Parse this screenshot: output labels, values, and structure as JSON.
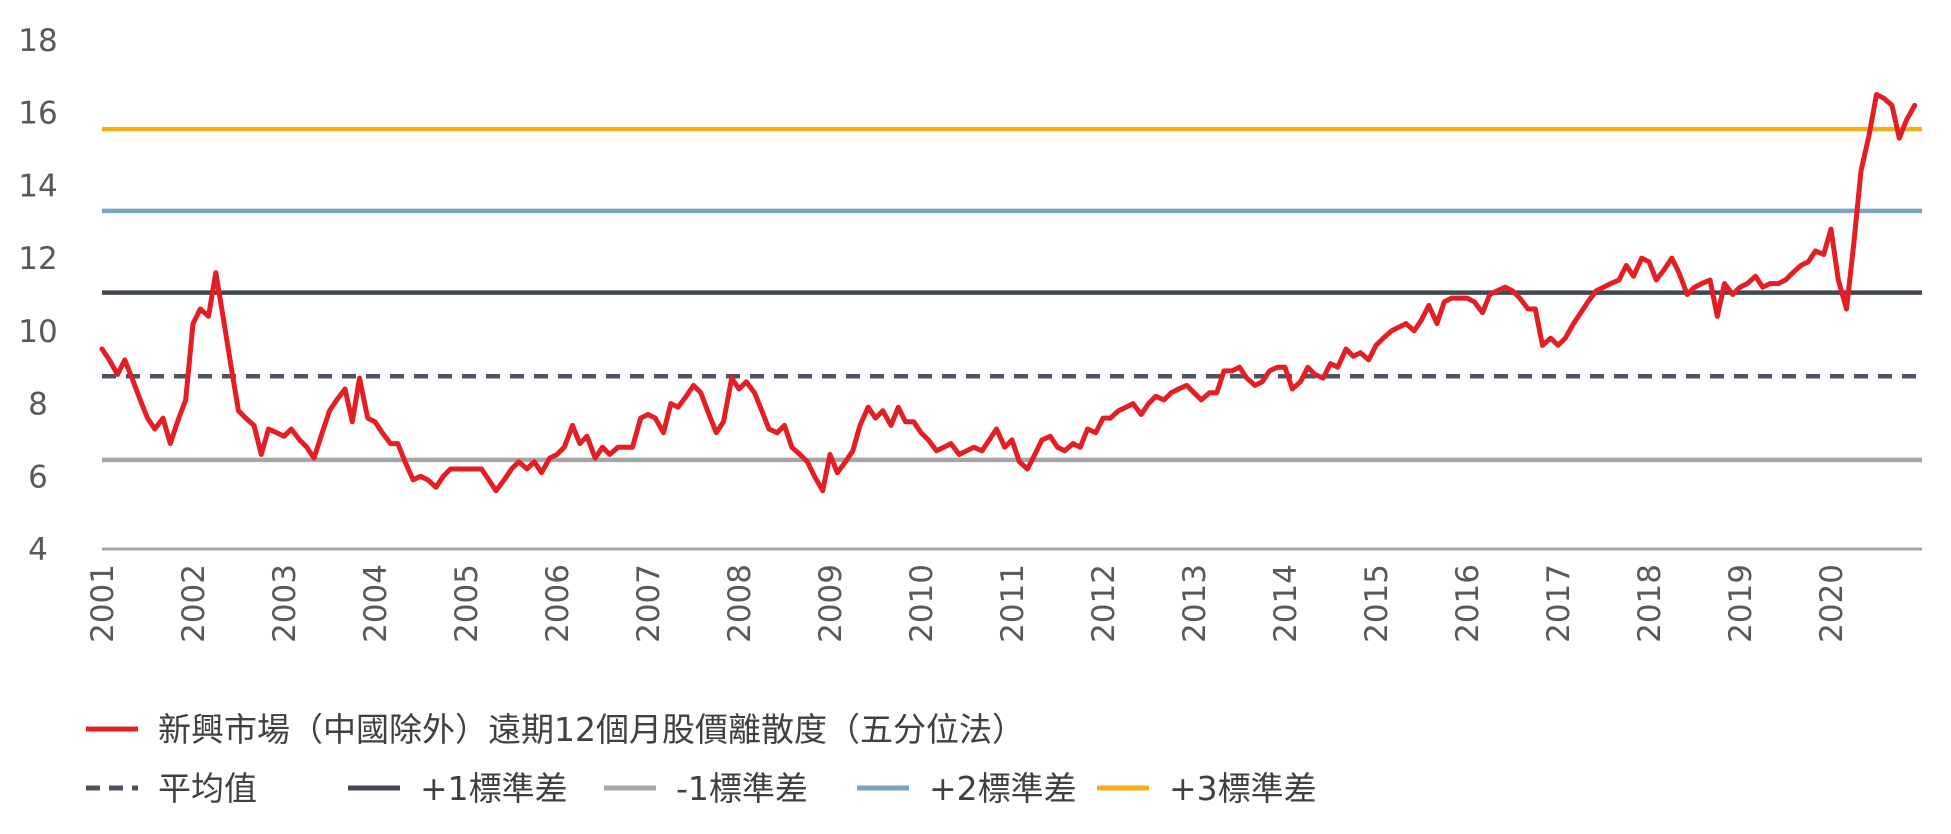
{
  "chart_data": {
    "type": "line",
    "title": "",
    "xlabel": "",
    "ylabel": "",
    "xlim": [
      2001.0,
      2021.0
    ],
    "ylim": [
      4,
      18
    ],
    "yticks": [
      4,
      6,
      8,
      10,
      12,
      14,
      16,
      18
    ],
    "xticks": [
      "2001",
      "2002",
      "2003",
      "2004",
      "2005",
      "2006",
      "2007",
      "2008",
      "2009",
      "2010",
      "2011",
      "2012",
      "2013",
      "2014",
      "2015",
      "2016",
      "2017",
      "2018",
      "2019",
      "2020"
    ],
    "grid": false,
    "legend_position": "bottom",
    "series": [
      {
        "name": "新興市場（中國除外）遠期12個月股價離散度（五分位法）",
        "color": "#e31e24",
        "style": "solid",
        "x": [
          2001.0,
          2001.08,
          2001.17,
          2001.25,
          2001.33,
          2001.42,
          2001.5,
          2001.58,
          2001.67,
          2001.75,
          2001.83,
          2001.92,
          2002.0,
          2002.08,
          2002.17,
          2002.25,
          2002.33,
          2002.42,
          2002.5,
          2002.58,
          2002.67,
          2002.75,
          2002.83,
          2002.92,
          2003.0,
          2003.08,
          2003.17,
          2003.25,
          2003.33,
          2003.42,
          2003.5,
          2003.58,
          2003.67,
          2003.75,
          2003.83,
          2003.92,
          2004.0,
          2004.08,
          2004.17,
          2004.25,
          2004.33,
          2004.42,
          2004.5,
          2004.58,
          2004.67,
          2004.75,
          2004.83,
          2004.92,
          2005.0,
          2005.08,
          2005.17,
          2005.25,
          2005.33,
          2005.42,
          2005.5,
          2005.58,
          2005.67,
          2005.75,
          2005.83,
          2005.92,
          2006.0,
          2006.08,
          2006.17,
          2006.25,
          2006.33,
          2006.42,
          2006.5,
          2006.58,
          2006.67,
          2006.75,
          2006.83,
          2006.92,
          2007.0,
          2007.08,
          2007.17,
          2007.25,
          2007.33,
          2007.42,
          2007.5,
          2007.58,
          2007.67,
          2007.75,
          2007.83,
          2007.92,
          2008.0,
          2008.08,
          2008.17,
          2008.25,
          2008.33,
          2008.42,
          2008.5,
          2008.58,
          2008.67,
          2008.75,
          2008.83,
          2008.92,
          2009.0,
          2009.08,
          2009.17,
          2009.25,
          2009.33,
          2009.42,
          2009.5,
          2009.58,
          2009.67,
          2009.75,
          2009.83,
          2009.92,
          2010.0,
          2010.08,
          2010.17,
          2010.25,
          2010.33,
          2010.42,
          2010.5,
          2010.58,
          2010.67,
          2010.75,
          2010.83,
          2010.92,
          2011.0,
          2011.08,
          2011.17,
          2011.25,
          2011.33,
          2011.42,
          2011.5,
          2011.58,
          2011.67,
          2011.75,
          2011.83,
          2011.92,
          2012.0,
          2012.08,
          2012.17,
          2012.25,
          2012.33,
          2012.42,
          2012.5,
          2012.58,
          2012.67,
          2012.75,
          2012.83,
          2012.92,
          2013.0,
          2013.08,
          2013.17,
          2013.25,
          2013.33,
          2013.42,
          2013.5,
          2013.58,
          2013.67,
          2013.75,
          2013.83,
          2013.92,
          2014.0,
          2014.08,
          2014.17,
          2014.25,
          2014.33,
          2014.42,
          2014.5,
          2014.58,
          2014.67,
          2014.75,
          2014.83,
          2014.92,
          2015.0,
          2015.08,
          2015.17,
          2015.25,
          2015.33,
          2015.42,
          2015.5,
          2015.58,
          2015.67,
          2015.75,
          2015.83,
          2015.92,
          2016.0,
          2016.08,
          2016.17,
          2016.25,
          2016.33,
          2016.42,
          2016.5,
          2016.58,
          2016.67,
          2016.75,
          2016.83,
          2016.92,
          2017.0,
          2017.08,
          2017.17,
          2017.25,
          2017.33,
          2017.42,
          2017.5,
          2017.58,
          2017.67,
          2017.75,
          2017.83,
          2017.92,
          2018.0,
          2018.08,
          2018.17,
          2018.25,
          2018.33,
          2018.42,
          2018.5,
          2018.58,
          2018.67,
          2018.75,
          2018.83,
          2018.92,
          2019.0,
          2019.08,
          2019.17,
          2019.25,
          2019.33,
          2019.42,
          2019.5,
          2019.58,
          2019.67,
          2019.75,
          2019.83,
          2019.92,
          2020.0,
          2020.08,
          2020.17,
          2020.25,
          2020.33,
          2020.42,
          2020.5,
          2020.58,
          2020.67,
          2020.75,
          2020.83,
          2020.92
        ],
        "values": [
          9.5,
          9.2,
          8.8,
          9.2,
          8.7,
          8.1,
          7.6,
          7.3,
          7.6,
          6.9,
          7.5,
          8.1,
          10.2,
          10.6,
          10.4,
          11.6,
          10.4,
          9.0,
          7.8,
          7.6,
          7.4,
          6.6,
          7.3,
          7.2,
          7.1,
          7.3,
          7.0,
          6.8,
          6.5,
          7.2,
          7.8,
          8.1,
          8.4,
          7.5,
          8.7,
          7.6,
          7.5,
          7.2,
          6.9,
          6.9,
          6.4,
          5.9,
          6.0,
          5.9,
          5.7,
          6.0,
          6.2,
          6.2,
          6.2,
          6.2,
          6.2,
          5.9,
          5.6,
          5.9,
          6.2,
          6.4,
          6.2,
          6.4,
          6.1,
          6.5,
          6.6,
          6.8,
          7.4,
          6.9,
          7.1,
          6.5,
          6.8,
          6.6,
          6.8,
          6.8,
          6.8,
          7.6,
          7.7,
          7.6,
          7.2,
          8.0,
          7.9,
          8.2,
          8.5,
          8.3,
          7.7,
          7.2,
          7.5,
          8.7,
          8.4,
          8.6,
          8.3,
          7.8,
          7.3,
          7.2,
          7.4,
          6.8,
          6.6,
          6.4,
          6.0,
          5.6,
          6.6,
          6.1,
          6.4,
          6.7,
          7.4,
          7.9,
          7.6,
          7.8,
          7.4,
          7.9,
          7.5,
          7.5,
          7.2,
          7.0,
          6.7,
          6.8,
          6.9,
          6.6,
          6.7,
          6.8,
          6.7,
          7.0,
          7.3,
          6.8,
          7.0,
          6.4,
          6.2,
          6.6,
          7.0,
          7.1,
          6.8,
          6.7,
          6.9,
          6.8,
          7.3,
          7.2,
          7.6,
          7.6,
          7.8,
          7.9,
          8.0,
          7.7,
          8.0,
          8.2,
          8.1,
          8.3,
          8.4,
          8.5,
          8.3,
          8.1,
          8.3,
          8.3,
          8.9,
          8.9,
          9.0,
          8.7,
          8.5,
          8.6,
          8.9,
          9.0,
          9.0,
          8.4,
          8.6,
          9.0,
          8.8,
          8.7,
          9.1,
          9.0,
          9.5,
          9.3,
          9.4,
          9.2,
          9.6,
          9.8,
          10.0,
          10.1,
          10.2,
          10.0,
          10.3,
          10.7,
          10.2,
          10.8,
          10.9,
          10.9,
          10.9,
          10.8,
          10.5,
          11.0,
          11.1,
          11.2,
          11.1,
          10.9,
          10.6,
          10.6,
          9.6,
          9.8,
          9.6,
          9.8,
          10.2,
          10.5,
          10.8,
          11.1,
          11.2,
          11.3,
          11.4,
          11.8,
          11.5,
          12.0,
          11.9,
          11.4,
          11.7,
          12.0,
          11.6,
          11.0,
          11.2,
          11.3,
          11.4,
          10.4,
          11.3,
          11.0,
          11.2,
          11.3,
          11.5,
          11.2,
          11.3,
          11.3,
          11.4,
          11.6,
          11.8,
          11.9,
          12.2,
          12.1,
          12.8,
          11.4,
          10.6,
          12.4,
          14.4,
          15.4,
          16.5,
          16.4,
          16.2,
          15.3,
          15.8,
          16.2
        ]
      },
      {
        "name": "平均值",
        "color": "#4a5560",
        "style": "dashed",
        "value": 8.75
      },
      {
        "name": "+1標準差",
        "color": "#414a52",
        "style": "solid",
        "value": 11.05
      },
      {
        "name": "-1標準差",
        "color": "#a6a6a6",
        "style": "solid",
        "value": 6.45
      },
      {
        "name": "+2標準差",
        "color": "#7aa3bd",
        "style": "solid",
        "value": 13.3
      },
      {
        "name": "+3標準差",
        "color": "#f2b015",
        "style": "solid",
        "value": 15.55
      }
    ]
  },
  "axis_color": "#a0a8ae"
}
